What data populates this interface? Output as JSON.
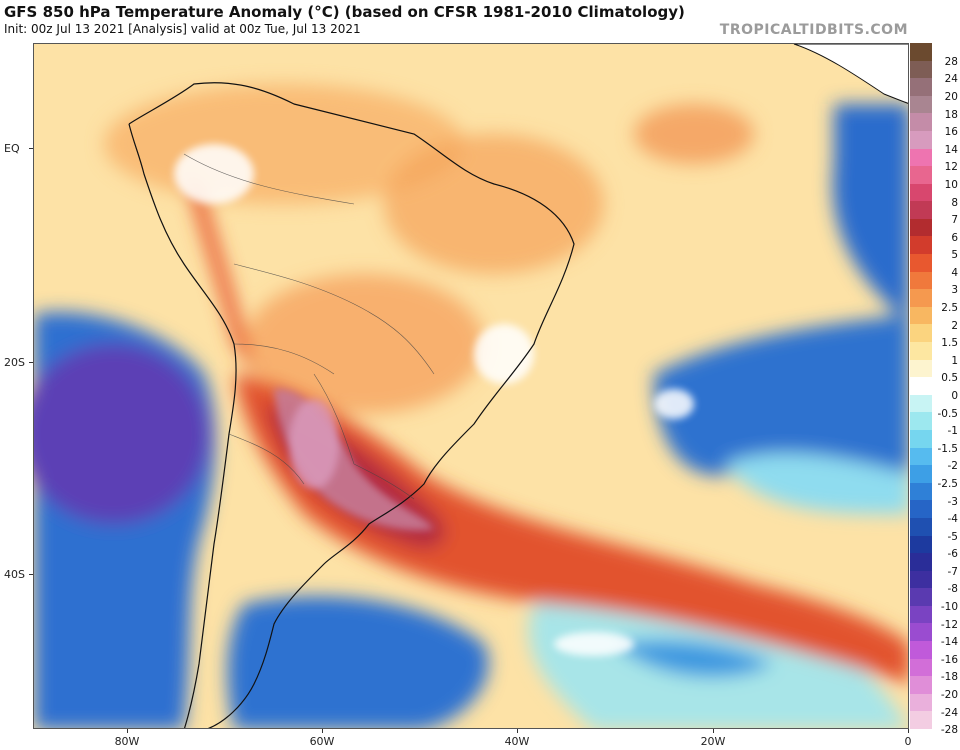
{
  "header": {
    "title": "GFS 850 hPa Temperature Anomaly (°C) (based on CFSR 1981-2010 Climatology)",
    "subtitle": "Init: 00z Jul 13 2021   [Analysis]   valid at 00z Tue, Jul 13 2021",
    "brand": "TROPICALTIDBITS.COM"
  },
  "axes": {
    "lat_labels": [
      "EQ",
      "20S",
      "40S"
    ],
    "lon_labels": [
      "80W",
      "60W",
      "40W",
      "20W",
      "0"
    ]
  },
  "colorbar": {
    "labels": [
      "28",
      "24",
      "20",
      "18",
      "16",
      "14",
      "12",
      "10",
      "8",
      "7",
      "6",
      "5",
      "4",
      "3",
      "2.5",
      "2",
      "1.5",
      "1",
      "0.5",
      "0",
      "-0.5",
      "-1",
      "-1.5",
      "-2",
      "-2.5",
      "-3",
      "-4",
      "-5",
      "-6",
      "-7",
      "-8",
      "-10",
      "-12",
      "-14",
      "-16",
      "-18",
      "-20",
      "-24",
      "-28"
    ],
    "colors": [
      "#6b4a2f",
      "#7e5d55",
      "#957078",
      "#a98591",
      "#c48ca8",
      "#d79bbe",
      "#ee74b0",
      "#e8668f",
      "#d8476e",
      "#c13a55",
      "#b22c2f",
      "#d23c2c",
      "#e8582f",
      "#f0793c",
      "#f5994f",
      "#f8b761",
      "#fbd47f",
      "#fde7a1",
      "#fdf4cf",
      "#ffffff",
      "#c8f4f4",
      "#9de8ef",
      "#76d6ef",
      "#56bbef",
      "#3d9fe6",
      "#2f80d7",
      "#2665c6",
      "#1f50b1",
      "#1d3a9f",
      "#2a2d98",
      "#3d2fa0",
      "#5a3ab0",
      "#7a43c2",
      "#9a4cd0",
      "#c05ada",
      "#d26ed8",
      "#e08ed8",
      "#eab0dc",
      "#f3cde2"
    ]
  }
}
